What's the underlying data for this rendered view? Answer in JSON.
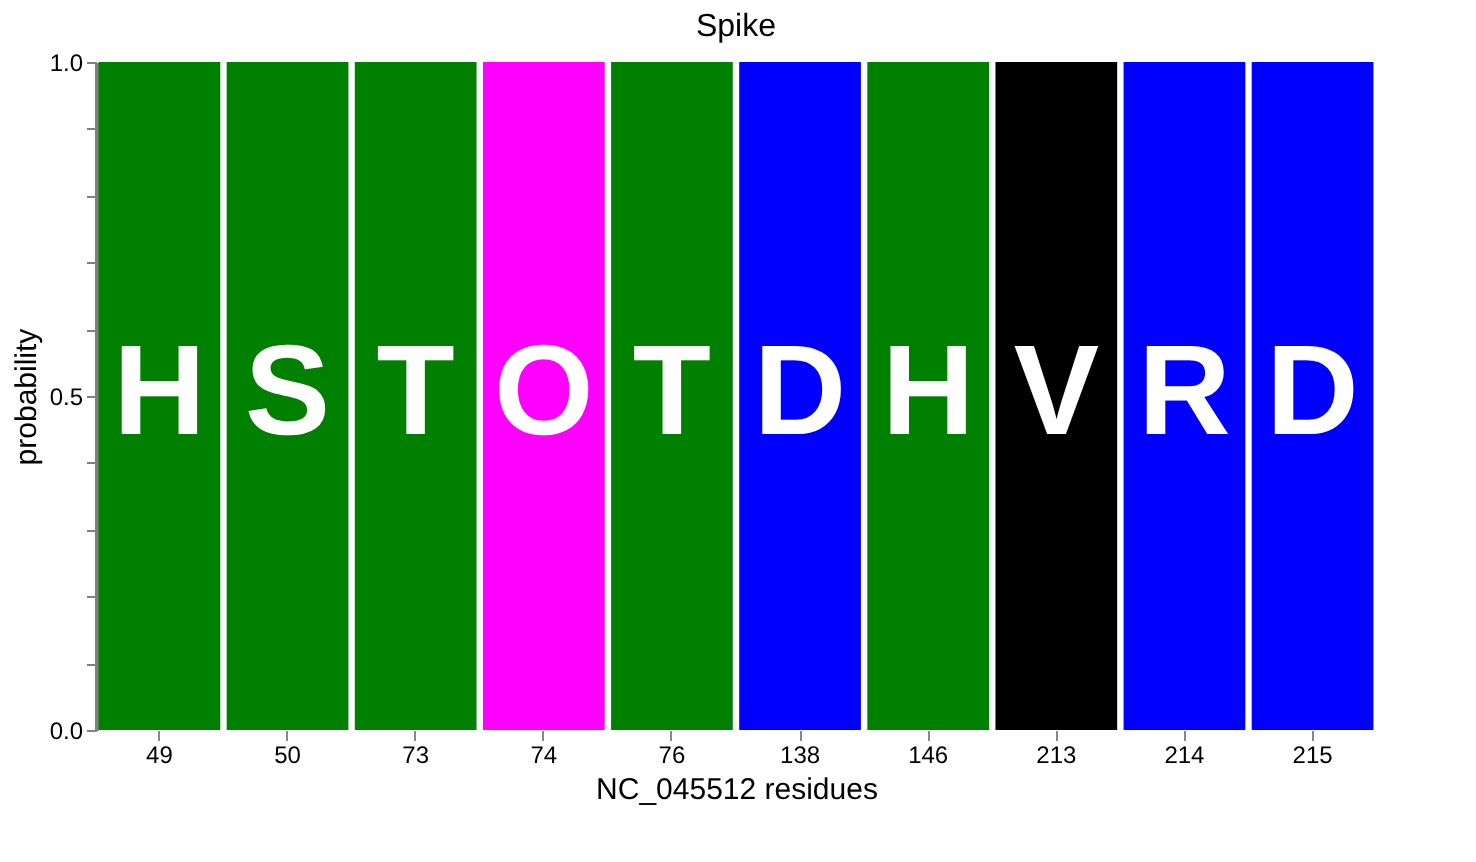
{
  "chart_data": {
    "type": "bar",
    "title": "Spike",
    "xlabel": "NC_045512 residues",
    "ylabel": "probability",
    "categories": [
      "49",
      "50",
      "73",
      "74",
      "76",
      "138",
      "146",
      "213",
      "214",
      "215"
    ],
    "values": [
      1.0,
      1.0,
      1.0,
      1.0,
      1.0,
      1.0,
      1.0,
      1.0,
      1.0,
      1.0
    ],
    "value_labels": [
      "H",
      "S",
      "T",
      "O",
      "T",
      "D",
      "H",
      "V",
      "R",
      "D"
    ],
    "colors": [
      "#008000",
      "#008000",
      "#008000",
      "#ff00ff",
      "#008000",
      "#0000ff",
      "#008000",
      "#000000",
      "#0000ff",
      "#0000ff"
    ],
    "ylim": [
      0.0,
      1.0
    ],
    "yticks": [
      {
        "value": 0.0,
        "label": "0.0"
      },
      {
        "value": 0.1,
        "label": null
      },
      {
        "value": 0.2,
        "label": null
      },
      {
        "value": 0.3,
        "label": null
      },
      {
        "value": 0.4,
        "label": null
      },
      {
        "value": 0.5,
        "label": "0.5"
      },
      {
        "value": 0.6,
        "label": null
      },
      {
        "value": 0.7,
        "label": null
      },
      {
        "value": 0.8,
        "label": null
      },
      {
        "value": 0.9,
        "label": null
      },
      {
        "value": 1.0,
        "label": "1.0"
      }
    ],
    "grid": false
  }
}
